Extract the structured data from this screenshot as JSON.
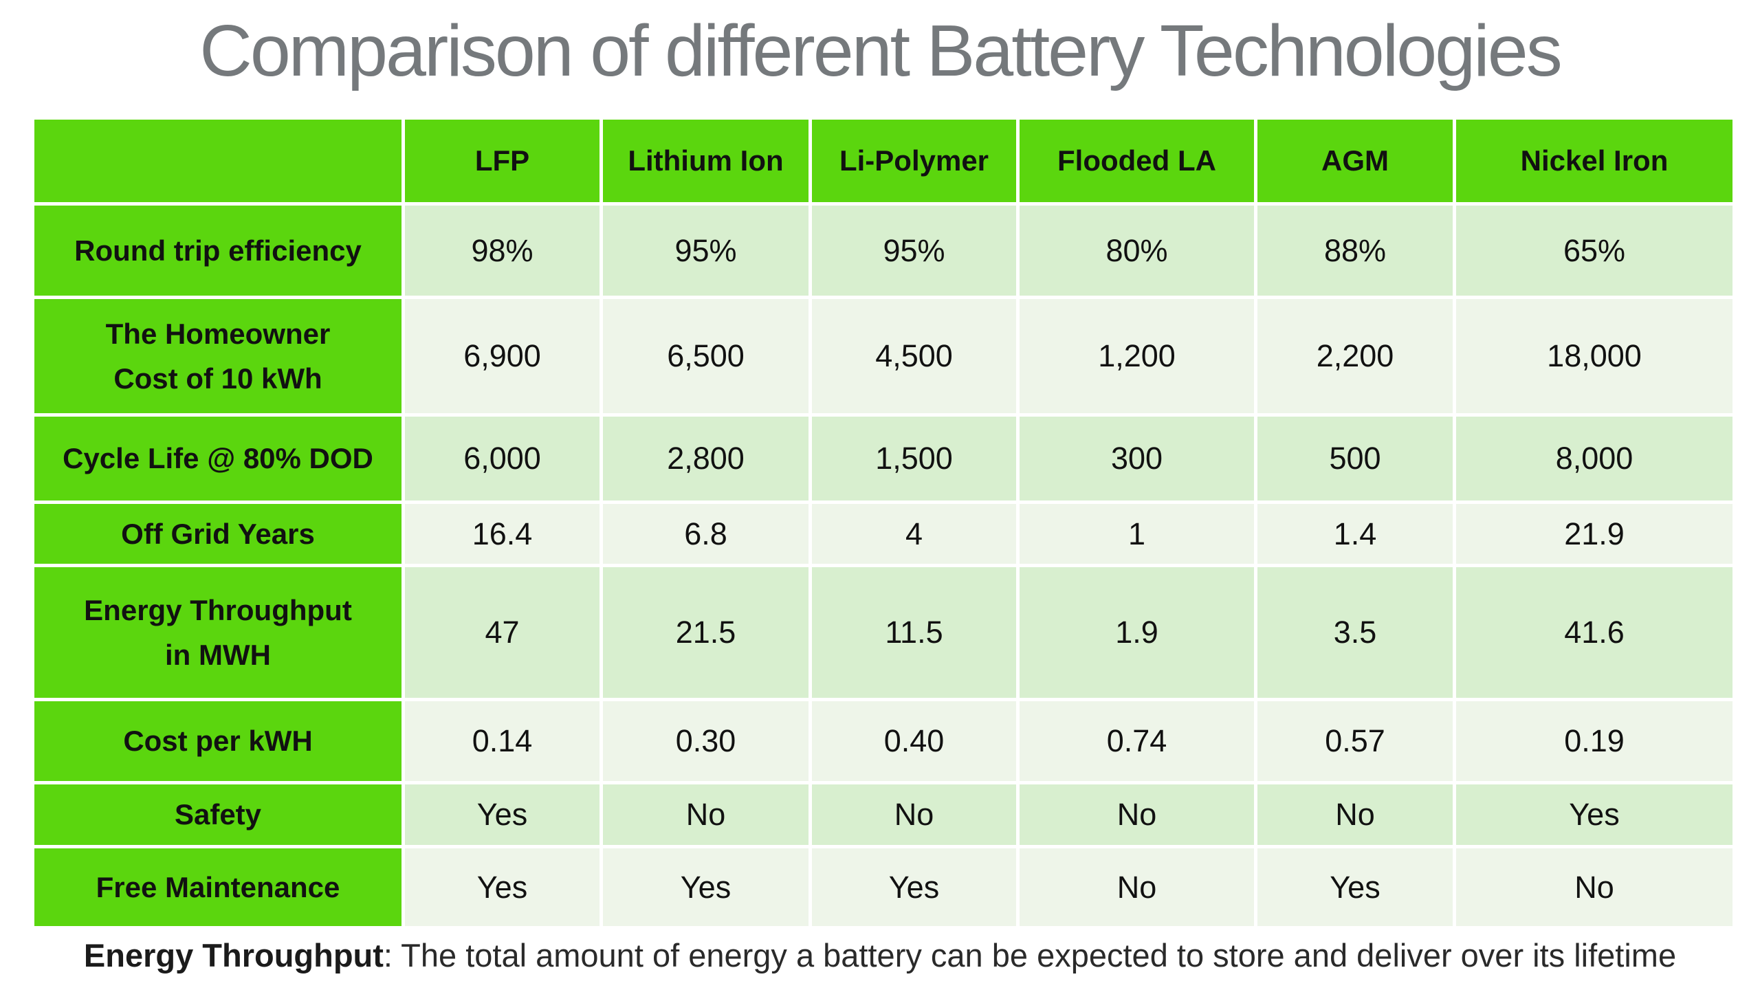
{
  "title": "Comparison of different Battery Technologies",
  "table": {
    "columns": [
      "",
      "LFP",
      "Lithium Ion",
      "Li-Polymer",
      "Flooded LA",
      "AGM",
      "Nickel Iron"
    ],
    "rows": [
      {
        "label": "Round trip efficiency",
        "values": [
          "98%",
          "95%",
          "95%",
          "80%",
          "88%",
          "65%"
        ]
      },
      {
        "label": "The Homeowner\nCost of 10 kWh",
        "values": [
          "6,900",
          "6,500",
          "4,500",
          "1,200",
          "2,200",
          "18,000"
        ]
      },
      {
        "label": "Cycle Life @ 80% DOD",
        "values": [
          "6,000",
          "2,800",
          "1,500",
          "300",
          "500",
          "8,000"
        ]
      },
      {
        "label": "Off Grid Years",
        "values": [
          "16.4",
          "6.8",
          "4",
          "1",
          "1.4",
          "21.9"
        ]
      },
      {
        "label": "Energy Throughput\nin MWH",
        "values": [
          "47",
          "21.5",
          "11.5",
          "1.9",
          "3.5",
          "41.6"
        ]
      },
      {
        "label": "Cost per kWH",
        "values": [
          "0.14",
          "0.30",
          "0.40",
          "0.74",
          "0.57",
          "0.19"
        ]
      },
      {
        "label": "Safety",
        "values": [
          "Yes",
          "No",
          "No",
          "No",
          "No",
          "Yes"
        ]
      },
      {
        "label": "Free Maintenance",
        "values": [
          "Yes",
          "Yes",
          "Yes",
          "No",
          "Yes",
          "No"
        ]
      }
    ]
  },
  "footnote": {
    "term": "Energy Throughput",
    "rest": ": The total amount of energy a battery can be expected to store and deliver over its lifetime"
  },
  "colors": {
    "header_green": "#5bd60e",
    "row_light": "#d8efcf",
    "row_pale": "#eef5e9",
    "title_gray": "#75797c",
    "text_black": "#111111"
  },
  "chart_data": {
    "type": "table",
    "title": "Comparison of different Battery Technologies",
    "columns": [
      "LFP",
      "Lithium Ion",
      "Li-Polymer",
      "Flooded LA",
      "AGM",
      "Nickel Iron"
    ],
    "rows": [
      {
        "metric": "Round trip efficiency",
        "values": [
          "98%",
          "95%",
          "95%",
          "80%",
          "88%",
          "65%"
        ]
      },
      {
        "metric": "The Homeowner Cost of 10 kWh",
        "values": [
          6900,
          6500,
          4500,
          1200,
          2200,
          18000
        ]
      },
      {
        "metric": "Cycle Life @ 80% DOD",
        "values": [
          6000,
          2800,
          1500,
          300,
          500,
          8000
        ]
      },
      {
        "metric": "Off Grid Years",
        "values": [
          16.4,
          6.8,
          4,
          1,
          1.4,
          21.9
        ]
      },
      {
        "metric": "Energy Throughput in MWH",
        "values": [
          47,
          21.5,
          11.5,
          1.9,
          3.5,
          41.6
        ]
      },
      {
        "metric": "Cost per kWH",
        "values": [
          0.14,
          0.3,
          0.4,
          0.74,
          0.57,
          0.19
        ]
      },
      {
        "metric": "Safety",
        "values": [
          "Yes",
          "No",
          "No",
          "No",
          "No",
          "Yes"
        ]
      },
      {
        "metric": "Free Maintenance",
        "values": [
          "Yes",
          "Yes",
          "Yes",
          "No",
          "Yes",
          "No"
        ]
      }
    ],
    "footnote": "Energy Throughput: The total amount of energy a battery can be expected to store and deliver over its lifetime",
    "legend_position": "none",
    "grid": "white-gaps-between-cells"
  }
}
